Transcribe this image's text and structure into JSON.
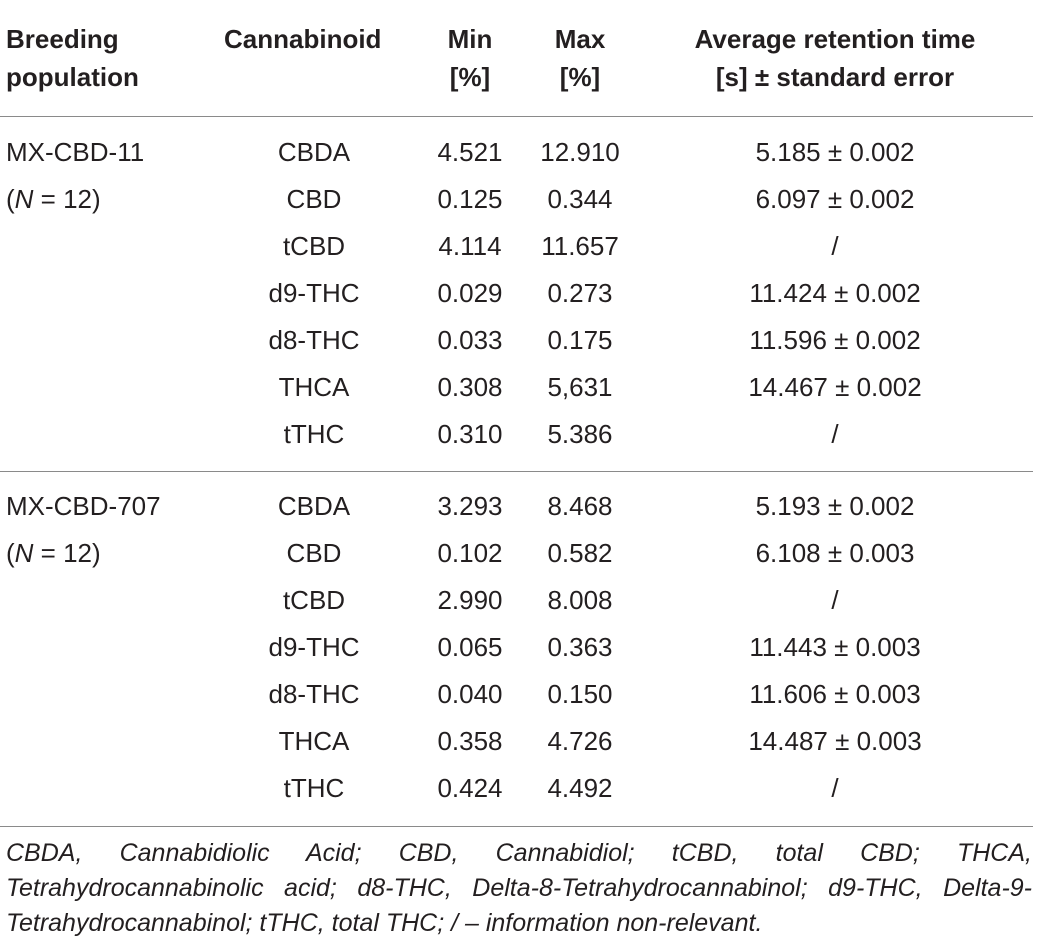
{
  "header": {
    "col1": [
      "Breeding",
      "population"
    ],
    "col2": [
      "Cannabinoid",
      ""
    ],
    "col3": [
      "Min",
      "[%]"
    ],
    "col4": [
      "Max",
      "[%]"
    ],
    "col5": [
      "Average retention time",
      "[s] ± standard error"
    ]
  },
  "groups": [
    {
      "name": "MX-CBD-11",
      "n_label": "(N = 12)",
      "rows": [
        {
          "cannabinoid": "CBDA",
          "min": "4.521",
          "max": "12.910",
          "avg": "5.185 ± 0.002"
        },
        {
          "cannabinoid": "CBD",
          "min": "0.125",
          "max": "0.344",
          "avg": "6.097 ± 0.002"
        },
        {
          "cannabinoid": "tCBD",
          "min": "4.114",
          "max": "11.657",
          "avg": "/"
        },
        {
          "cannabinoid": "d9-THC",
          "min": "0.029",
          "max": "0.273",
          "avg": "11.424 ± 0.002"
        },
        {
          "cannabinoid": "d8-THC",
          "min": "0.033",
          "max": "0.175",
          "avg": "11.596 ± 0.002"
        },
        {
          "cannabinoid": "THCA",
          "min": "0.308",
          "max": "5,631",
          "avg": "14.467 ± 0.002"
        },
        {
          "cannabinoid": "tTHC",
          "min": "0.310",
          "max": "5.386",
          "avg": "/"
        }
      ]
    },
    {
      "name": "MX-CBD-707",
      "n_label": "(N = 12)",
      "rows": [
        {
          "cannabinoid": "CBDA",
          "min": "3.293",
          "max": "8.468",
          "avg": "5.193 ± 0.002"
        },
        {
          "cannabinoid": "CBD",
          "min": "0.102",
          "max": "0.582",
          "avg": "6.108 ± 0.003"
        },
        {
          "cannabinoid": "tCBD",
          "min": "2.990",
          "max": "8.008",
          "avg": "/"
        },
        {
          "cannabinoid": "d9-THC",
          "min": "0.065",
          "max": "0.363",
          "avg": "11.443 ± 0.003"
        },
        {
          "cannabinoid": "d8-THC",
          "min": "0.040",
          "max": "0.150",
          "avg": "11.606 ± 0.003"
        },
        {
          "cannabinoid": "THCA",
          "min": "0.358",
          "max": "4.726",
          "avg": "14.487 ± 0.003"
        },
        {
          "cannabinoid": "tTHC",
          "min": "0.424",
          "max": "4.492",
          "avg": "/"
        }
      ]
    }
  ],
  "footnote": "CBDA, Cannabidiolic Acid; CBD, Cannabidiol; tCBD, total CBD; THCA, Tetrahydrocannabinolic acid; d8-THC, Delta-8-Tetrahydrocannabinol; d9-THC, Delta-9-Tetrahydrocannabinol; tTHC, total THC; / – information non-relevant."
}
